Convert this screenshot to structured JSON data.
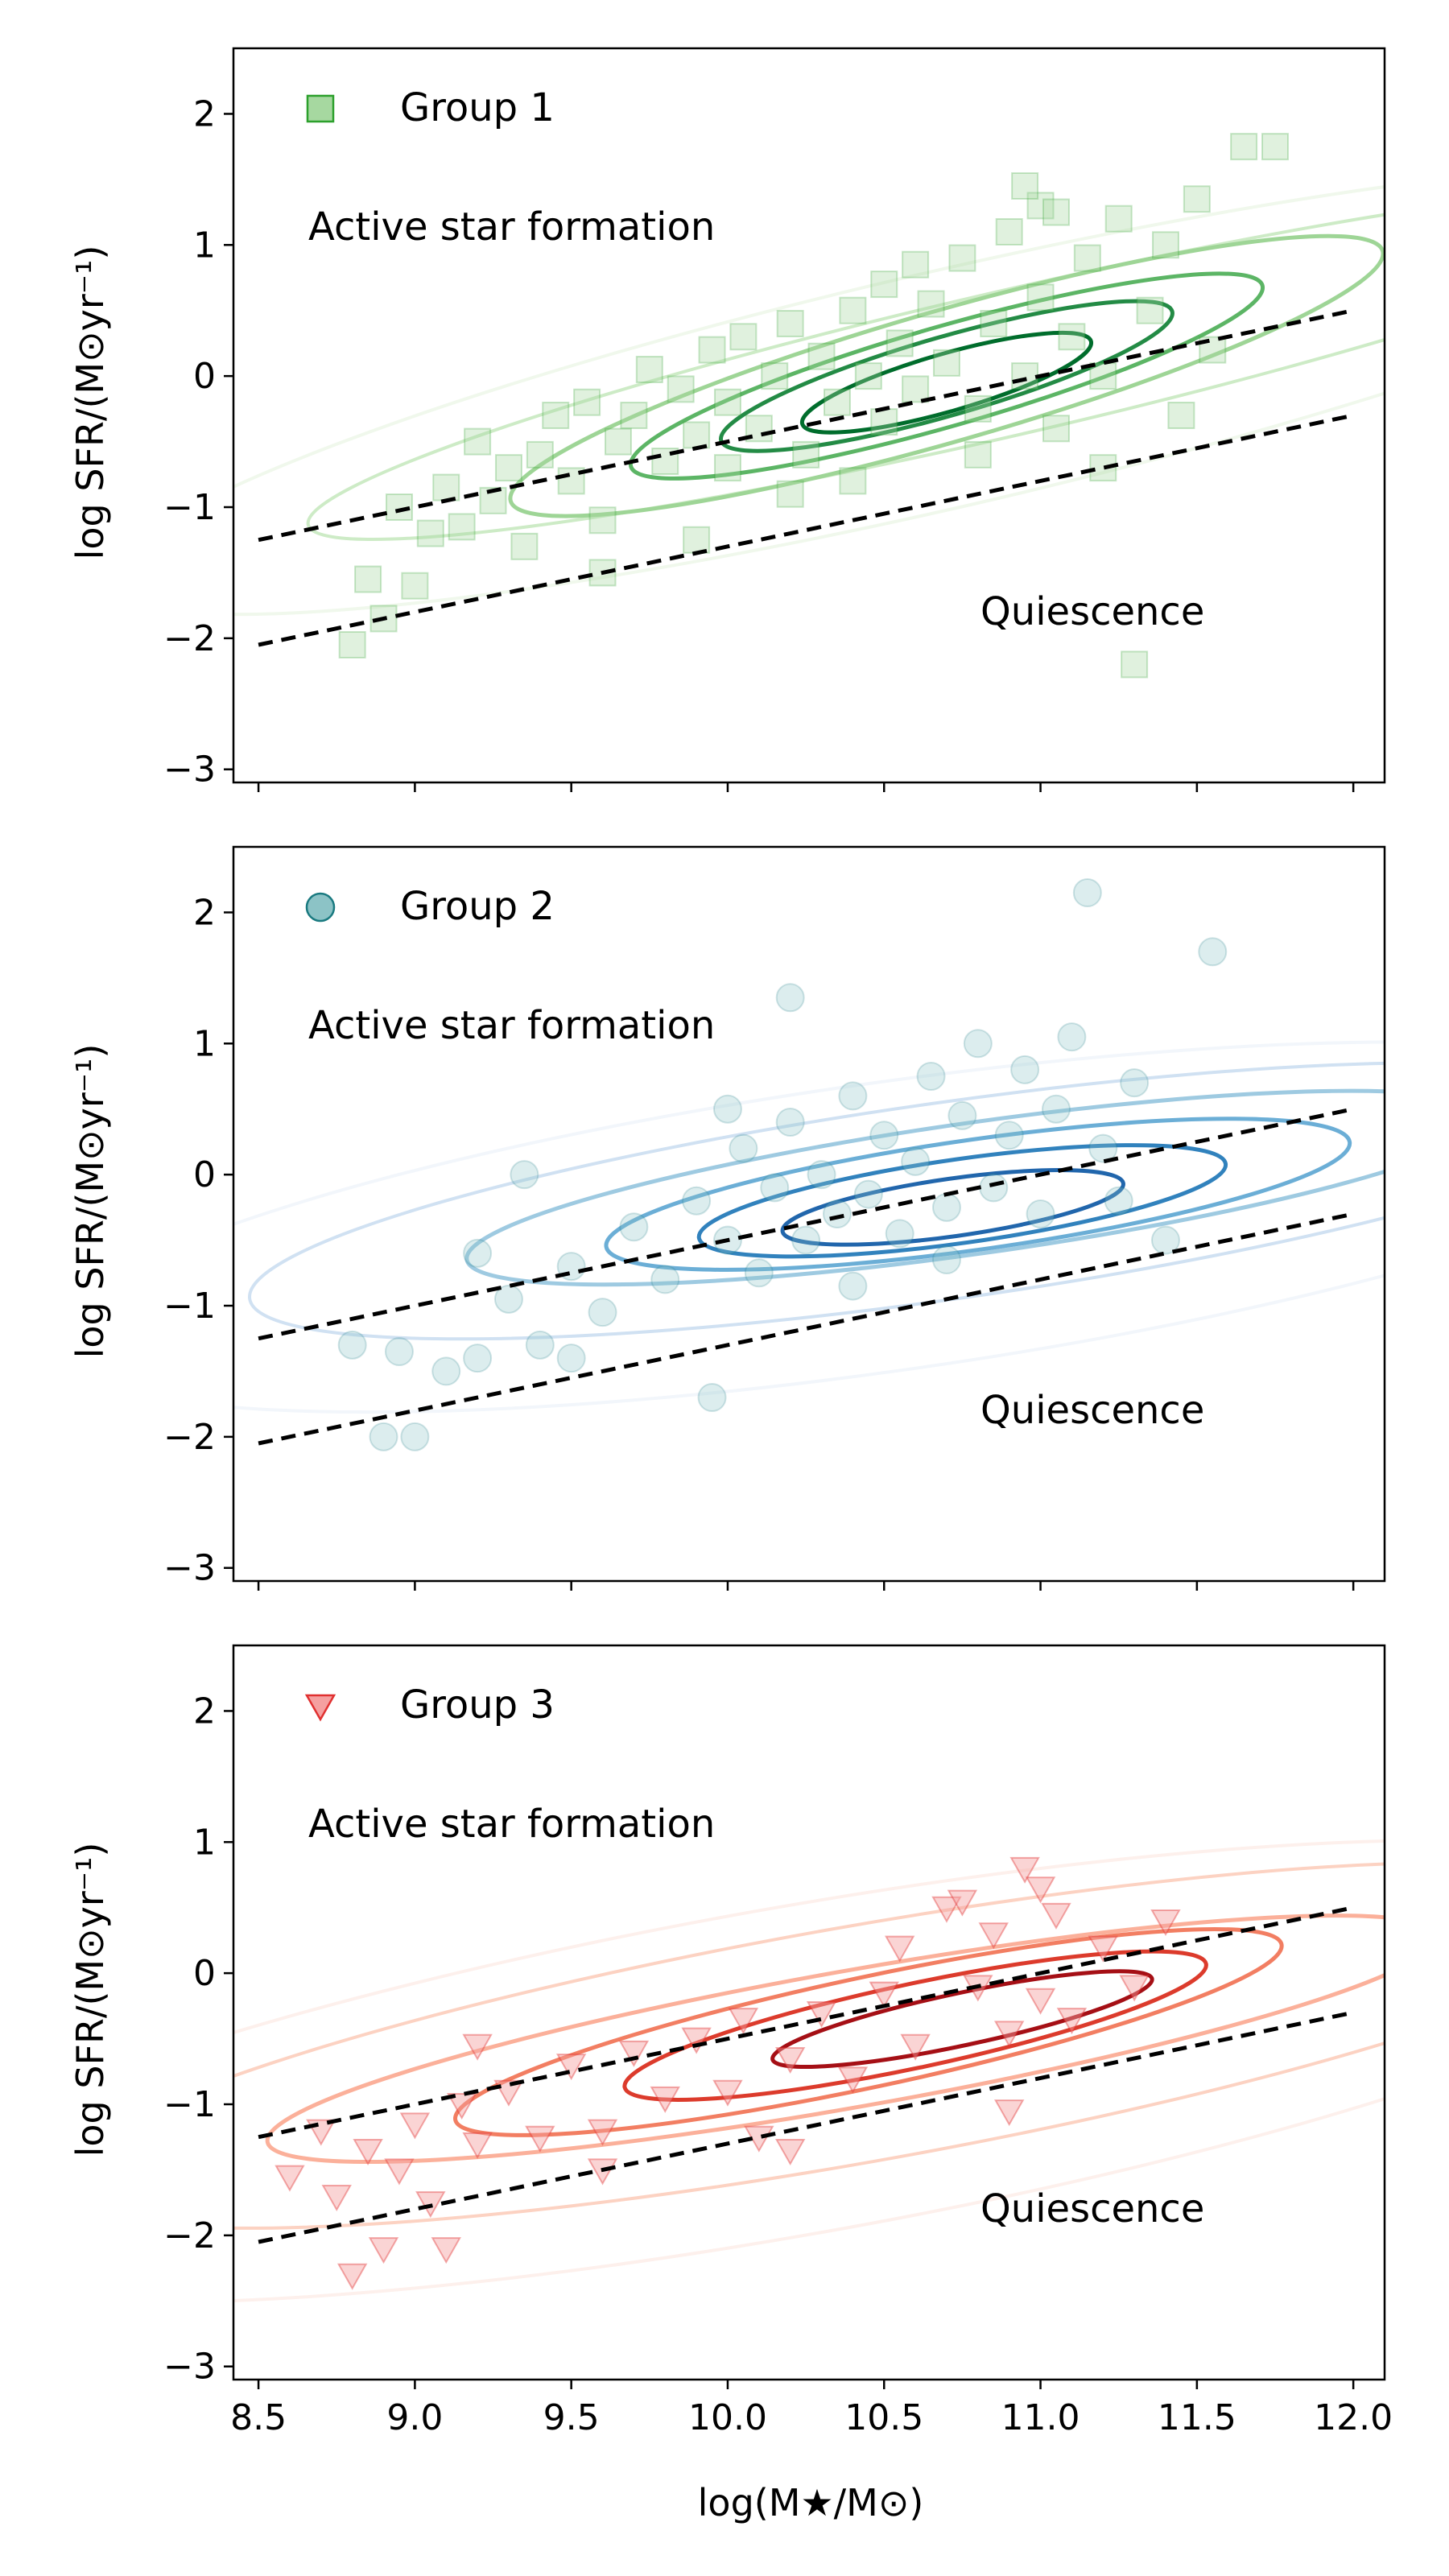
{
  "figure": {
    "xlabel": "log(M★/M⊙)",
    "ylabel": "log SFR/(M⊙yr⁻¹)"
  },
  "chart_data": [
    {
      "type": "scatter",
      "panel": "top",
      "group_label": "Group 1",
      "marker": "square",
      "color": "#2ca02c",
      "marker_face": "#a6d8a0",
      "contour_colors": [
        "#f0f8ec",
        "#cdebc6",
        "#9ed596",
        "#5cb565",
        "#238b45",
        "#006d2c"
      ],
      "annotations": {
        "active": "Active star formation",
        "quiescence": "Quiescence"
      },
      "xlim": [
        8.42,
        12.1
      ],
      "ylim": [
        -3.1,
        2.5
      ],
      "xticks": [
        "8.5",
        "9.0",
        "9.5",
        "10.0",
        "10.5",
        "11.0",
        "11.5",
        "12.0"
      ],
      "yticks": [
        "−3",
        "−2",
        "−1",
        "0",
        "1",
        "2"
      ],
      "ytick_values": [
        -3,
        -2,
        -1,
        0,
        1,
        2
      ],
      "xtick_values": [
        8.5,
        9.0,
        9.5,
        10.0,
        10.5,
        11.0,
        11.5,
        12.0
      ],
      "show_xticklabels": false,
      "dashed_lines": [
        {
          "x": [
            8.5,
            12.0
          ],
          "y": [
            -1.25,
            0.5
          ]
        },
        {
          "x": [
            8.5,
            12.0
          ],
          "y": [
            -2.05,
            -0.3
          ]
        }
      ],
      "contours": [
        {
          "cx": 10.9,
          "cy": 0.1,
          "rx": 2.3,
          "ry": 0.55,
          "angle_deg": 13
        },
        {
          "cx": 10.7,
          "cy": 0.0,
          "rx": 1.45,
          "ry": 0.5,
          "angle_deg": 16
        },
        {
          "cx": 10.7,
          "cy": 0.0,
          "rx": 1.05,
          "ry": 0.38,
          "angle_deg": 16
        },
        {
          "cx": 10.7,
          "cy": 0.0,
          "rx": 0.75,
          "ry": 0.3,
          "angle_deg": 16
        },
        {
          "cx": 10.7,
          "cy": -0.05,
          "rx": 0.48,
          "ry": 0.22,
          "angle_deg": 16
        }
      ],
      "points": [
        [
          8.8,
          -2.05
        ],
        [
          8.85,
          -1.55
        ],
        [
          8.9,
          -1.85
        ],
        [
          8.95,
          -1.0
        ],
        [
          9.0,
          -1.6
        ],
        [
          9.05,
          -1.2
        ],
        [
          9.1,
          -0.85
        ],
        [
          9.15,
          -1.15
        ],
        [
          9.2,
          -0.5
        ],
        [
          9.25,
          -0.95
        ],
        [
          9.3,
          -0.7
        ],
        [
          9.35,
          -1.3
        ],
        [
          9.4,
          -0.6
        ],
        [
          9.45,
          -0.3
        ],
        [
          9.5,
          -0.8
        ],
        [
          9.55,
          -0.2
        ],
        [
          9.6,
          -1.1
        ],
        [
          9.65,
          -0.5
        ],
        [
          9.7,
          -0.3
        ],
        [
          9.75,
          0.05
        ],
        [
          9.8,
          -0.65
        ],
        [
          9.85,
          -0.1
        ],
        [
          9.9,
          -0.45
        ],
        [
          9.95,
          0.2
        ],
        [
          10.0,
          -0.7
        ],
        [
          10.0,
          -0.2
        ],
        [
          10.05,
          0.3
        ],
        [
          10.1,
          -0.4
        ],
        [
          10.15,
          0.0
        ],
        [
          10.2,
          0.4
        ],
        [
          10.25,
          -0.6
        ],
        [
          10.3,
          0.15
        ],
        [
          10.35,
          -0.2
        ],
        [
          10.4,
          0.5
        ],
        [
          10.45,
          0.0
        ],
        [
          10.5,
          -0.35
        ],
        [
          10.5,
          0.7
        ],
        [
          10.55,
          0.25
        ],
        [
          10.6,
          -0.1
        ],
        [
          10.65,
          0.55
        ],
        [
          10.7,
          0.1
        ],
        [
          10.75,
          0.9
        ],
        [
          10.8,
          -0.25
        ],
        [
          10.85,
          0.4
        ],
        [
          10.9,
          1.1
        ],
        [
          10.95,
          0.0
        ],
        [
          11.0,
          0.6
        ],
        [
          11.0,
          1.3
        ],
        [
          11.05,
          -0.4
        ],
        [
          11.1,
          0.3
        ],
        [
          11.15,
          0.9
        ],
        [
          11.2,
          0.0
        ],
        [
          11.25,
          1.2
        ],
        [
          11.3,
          -2.2
        ],
        [
          11.35,
          0.5
        ],
        [
          11.4,
          1.0
        ],
        [
          11.5,
          1.35
        ],
        [
          11.55,
          0.2
        ],
        [
          11.65,
          1.75
        ],
        [
          11.75,
          1.75
        ],
        [
          10.95,
          1.45
        ],
        [
          11.05,
          1.25
        ],
        [
          10.6,
          0.85
        ],
        [
          10.4,
          -0.8
        ],
        [
          10.2,
          -0.9
        ],
        [
          9.9,
          -1.25
        ],
        [
          9.6,
          -1.5
        ],
        [
          10.8,
          -0.6
        ],
        [
          11.2,
          -0.7
        ],
        [
          11.45,
          -0.3
        ]
      ]
    },
    {
      "type": "scatter",
      "panel": "middle",
      "group_label": "Group 2",
      "marker": "circle",
      "color": "#1a7a80",
      "marker_face": "#8cc3c6",
      "contour_colors": [
        "#f2f6fb",
        "#d0e1f2",
        "#9ecae1",
        "#6baed6",
        "#3182bd",
        "#2166ac"
      ],
      "annotations": {
        "active": "Active star formation",
        "quiescence": "Quiescence"
      },
      "xlim": [
        8.42,
        12.1
      ],
      "ylim": [
        -3.1,
        2.5
      ],
      "xticks": [
        "8.5",
        "9.0",
        "9.5",
        "10.0",
        "10.5",
        "11.0",
        "11.5",
        "12.0"
      ],
      "yticks": [
        "−3",
        "−2",
        "−1",
        "0",
        "1",
        "2"
      ],
      "ytick_values": [
        -3,
        -2,
        -1,
        0,
        1,
        2
      ],
      "xtick_values": [
        8.5,
        9.0,
        9.5,
        10.0,
        10.5,
        11.0,
        11.5,
        12.0
      ],
      "show_xticklabels": false,
      "dashed_lines": [
        {
          "x": [
            8.5,
            12.0
          ],
          "y": [
            -1.25,
            0.5
          ]
        },
        {
          "x": [
            8.5,
            12.0
          ],
          "y": [
            -2.05,
            -0.3
          ]
        }
      ],
      "contours": [
        {
          "cx": 10.7,
          "cy": -0.2,
          "rx": 2.25,
          "ry": 0.75,
          "angle_deg": 8
        },
        {
          "cx": 10.8,
          "cy": -0.1,
          "rx": 1.65,
          "ry": 0.5,
          "angle_deg": 8
        },
        {
          "cx": 10.8,
          "cy": -0.15,
          "rx": 1.2,
          "ry": 0.42,
          "angle_deg": 8
        },
        {
          "cx": 10.75,
          "cy": -0.2,
          "rx": 0.85,
          "ry": 0.32,
          "angle_deg": 8
        },
        {
          "cx": 10.72,
          "cy": -0.25,
          "rx": 0.55,
          "ry": 0.22,
          "angle_deg": 8
        }
      ],
      "points": [
        [
          8.8,
          -1.3
        ],
        [
          8.9,
          -2.0
        ],
        [
          8.95,
          -1.35
        ],
        [
          9.0,
          -2.0
        ],
        [
          9.1,
          -1.5
        ],
        [
          9.2,
          -1.4
        ],
        [
          9.3,
          -0.95
        ],
        [
          9.35,
          0.0
        ],
        [
          9.4,
          -1.3
        ],
        [
          9.5,
          -0.7
        ],
        [
          9.6,
          -1.05
        ],
        [
          9.7,
          -0.4
        ],
        [
          9.8,
          -0.8
        ],
        [
          9.9,
          -0.2
        ],
        [
          9.95,
          -1.7
        ],
        [
          10.0,
          -0.5
        ],
        [
          10.05,
          0.2
        ],
        [
          10.1,
          -0.75
        ],
        [
          10.15,
          -0.1
        ],
        [
          10.2,
          0.4
        ],
        [
          10.25,
          -0.5
        ],
        [
          10.3,
          0.0
        ],
        [
          10.35,
          -0.3
        ],
        [
          10.4,
          0.6
        ],
        [
          10.45,
          -0.15
        ],
        [
          10.5,
          0.3
        ],
        [
          10.55,
          -0.45
        ],
        [
          10.6,
          0.1
        ],
        [
          10.65,
          0.75
        ],
        [
          10.7,
          -0.25
        ],
        [
          10.75,
          0.45
        ],
        [
          10.8,
          1.0
        ],
        [
          10.85,
          -0.1
        ],
        [
          10.9,
          0.3
        ],
        [
          10.95,
          0.8
        ],
        [
          11.0,
          -0.3
        ],
        [
          11.05,
          0.5
        ],
        [
          11.1,
          1.05
        ],
        [
          11.15,
          2.15
        ],
        [
          11.2,
          0.2
        ],
        [
          11.3,
          0.7
        ],
        [
          11.4,
          -0.5
        ],
        [
          11.55,
          1.7
        ],
        [
          10.2,
          1.35
        ],
        [
          10.4,
          -0.85
        ],
        [
          10.7,
          -0.65
        ],
        [
          11.25,
          -0.2
        ],
        [
          9.5,
          -1.4
        ],
        [
          9.2,
          -0.6
        ],
        [
          10.0,
          0.5
        ]
      ]
    },
    {
      "type": "scatter",
      "panel": "bottom",
      "group_label": "Group 3",
      "marker": "triangle-down",
      "color": "#e03030",
      "marker_face": "#f5a0a0",
      "contour_colors": [
        "#fdf0ec",
        "#fcd2c2",
        "#fbb09a",
        "#f27e62",
        "#dc3b2c",
        "#a50f15"
      ],
      "annotations": {
        "active": "Active star formation",
        "quiescence": "Quiescence"
      },
      "xlim": [
        8.42,
        12.1
      ],
      "ylim": [
        -3.1,
        2.5
      ],
      "xticks": [
        "8.5",
        "9.0",
        "9.5",
        "10.0",
        "10.5",
        "11.0",
        "11.5",
        "12.0"
      ],
      "yticks": [
        "−3",
        "−2",
        "−1",
        "0",
        "1",
        "2"
      ],
      "ytick_values": [
        -3,
        -2,
        -1,
        0,
        1,
        2
      ],
      "xtick_values": [
        8.5,
        9.0,
        9.5,
        10.0,
        10.5,
        11.0,
        11.5,
        12.0
      ],
      "show_xticklabels": true,
      "dashed_lines": [
        {
          "x": [
            8.5,
            12.0
          ],
          "y": [
            -1.25,
            0.5
          ]
        },
        {
          "x": [
            8.5,
            12.0
          ],
          "y": [
            -2.05,
            -0.3
          ]
        }
      ],
      "contours": [
        {
          "cx": 10.4,
          "cy": -0.55,
          "rx": 2.6,
          "ry": 0.9,
          "angle_deg": 10
        },
        {
          "cx": 10.4,
          "cy": -0.5,
          "rx": 1.9,
          "ry": 0.52,
          "angle_deg": 10
        },
        {
          "cx": 10.45,
          "cy": -0.45,
          "rx": 1.35,
          "ry": 0.42,
          "angle_deg": 12
        },
        {
          "cx": 10.6,
          "cy": -0.4,
          "rx": 0.95,
          "ry": 0.32,
          "angle_deg": 12
        },
        {
          "cx": 10.75,
          "cy": -0.35,
          "rx": 0.62,
          "ry": 0.2,
          "angle_deg": 12
        }
      ],
      "points": [
        [
          8.6,
          -1.55
        ],
        [
          8.7,
          -1.2
        ],
        [
          8.75,
          -1.7
        ],
        [
          8.8,
          -2.3
        ],
        [
          8.85,
          -1.35
        ],
        [
          8.9,
          -2.1
        ],
        [
          8.95,
          -1.5
        ],
        [
          9.0,
          -1.15
        ],
        [
          9.05,
          -1.75
        ],
        [
          9.1,
          -2.1
        ],
        [
          9.15,
          -1.0
        ],
        [
          9.2,
          -1.3
        ],
        [
          9.2,
          -0.55
        ],
        [
          9.3,
          -0.9
        ],
        [
          9.4,
          -1.25
        ],
        [
          9.5,
          -0.7
        ],
        [
          9.6,
          -1.5
        ],
        [
          9.7,
          -0.6
        ],
        [
          9.8,
          -0.95
        ],
        [
          9.9,
          -0.5
        ],
        [
          10.0,
          -0.9
        ],
        [
          10.05,
          -0.35
        ],
        [
          10.1,
          -1.25
        ],
        [
          10.2,
          -0.65
        ],
        [
          10.3,
          -0.3
        ],
        [
          10.4,
          -0.8
        ],
        [
          10.5,
          -0.15
        ],
        [
          10.55,
          0.2
        ],
        [
          10.6,
          -0.55
        ],
        [
          10.7,
          0.5
        ],
        [
          10.8,
          -0.1
        ],
        [
          10.85,
          0.3
        ],
        [
          10.9,
          -0.45
        ],
        [
          10.95,
          0.8
        ],
        [
          11.0,
          -0.2
        ],
        [
          11.05,
          0.45
        ],
        [
          11.1,
          -0.35
        ],
        [
          11.2,
          0.2
        ],
        [
          11.3,
          -0.1
        ],
        [
          11.4,
          0.4
        ],
        [
          10.9,
          -1.05
        ],
        [
          10.2,
          -1.35
        ],
        [
          9.6,
          -1.2
        ],
        [
          10.75,
          0.55
        ],
        [
          11.0,
          0.65
        ]
      ]
    }
  ]
}
